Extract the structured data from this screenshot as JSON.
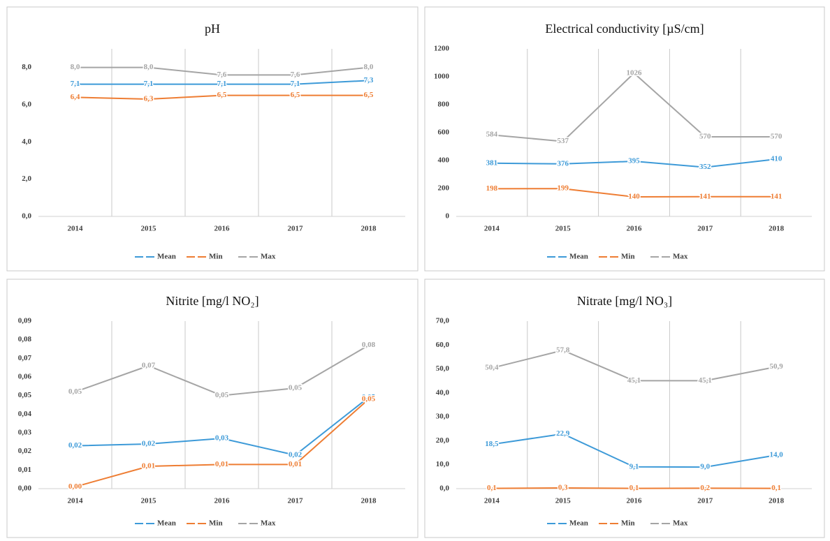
{
  "chart_data": [
    {
      "type": "line",
      "title": "pH",
      "categories": [
        "2014",
        "2015",
        "2016",
        "2017",
        "2018"
      ],
      "series": [
        {
          "name": "Mean",
          "color": "#3d9ad8",
          "values": [
            7.1,
            7.1,
            7.1,
            7.1,
            7.3
          ],
          "value_labels": [
            "7,1",
            "7,1",
            "7,1",
            "7,1",
            "7,3"
          ]
        },
        {
          "name": "Min",
          "color": "#ee7d33",
          "values": [
            6.4,
            6.3,
            6.5,
            6.5,
            6.5
          ],
          "value_labels": [
            "6,4",
            "6,3",
            "6,5",
            "6,5",
            "6,5"
          ]
        },
        {
          "name": "Max",
          "color": "#a5a5a5",
          "values": [
            8.0,
            8.0,
            7.6,
            7.6,
            8.0
          ],
          "value_labels": [
            "8,0",
            "8,0",
            "7,6",
            "7,6",
            "8,0"
          ]
        }
      ],
      "ylim": [
        0,
        9
      ],
      "yticks": [
        {
          "value": 0,
          "label": "0,0"
        },
        {
          "value": 2,
          "label": "2,0"
        },
        {
          "value": 4,
          "label": "4,0"
        },
        {
          "value": 6,
          "label": "6,0"
        },
        {
          "value": 8,
          "label": "8,0"
        }
      ],
      "grid": true,
      "legend": "bottom"
    },
    {
      "type": "line",
      "title": "Electrical conductivity [µS/cm]",
      "categories": [
        "2014",
        "2015",
        "2016",
        "2017",
        "2018"
      ],
      "series": [
        {
          "name": "Mean",
          "color": "#3d9ad8",
          "values": [
            381,
            376,
            395,
            352,
            410
          ]
        },
        {
          "name": "Min",
          "color": "#ee7d33",
          "values": [
            198,
            199,
            140,
            141,
            141
          ]
        },
        {
          "name": "Max",
          "color": "#a5a5a5",
          "values": [
            584,
            537,
            1026,
            570,
            570
          ]
        }
      ],
      "ylim": [
        0,
        1200
      ],
      "yticks": [
        0,
        200,
        400,
        600,
        800,
        1000,
        1200
      ],
      "grid": true,
      "legend": "bottom"
    },
    {
      "type": "line",
      "title": "Nitrite [mg/l NO₂]",
      "categories": [
        "2014",
        "2015",
        "2016",
        "2017",
        "2018"
      ],
      "series": [
        {
          "name": "Mean",
          "color": "#3d9ad8",
          "values": [
            0.023,
            0.024,
            0.027,
            0.018,
            0.049
          ],
          "value_labels": [
            "0,02",
            "0,02",
            "0,03",
            "0,02",
            "0,05"
          ]
        },
        {
          "name": "Min",
          "color": "#ee7d33",
          "values": [
            0.001,
            0.012,
            0.013,
            0.013,
            0.048
          ],
          "value_labels": [
            "0,00",
            "0,01",
            "0,01",
            "0,01",
            "0,05"
          ]
        },
        {
          "name": "Max",
          "color": "#a5a5a5",
          "values": [
            0.052,
            0.066,
            0.05,
            0.054,
            0.077
          ],
          "value_labels": [
            "0,05",
            "0,07",
            "0,05",
            "0,05",
            "0,08"
          ]
        }
      ],
      "ylim": [
        0,
        0.09
      ],
      "yticks": [
        {
          "value": 0,
          "label": "0,00"
        },
        {
          "value": 0.01,
          "label": "0,01"
        },
        {
          "value": 0.02,
          "label": "0,02"
        },
        {
          "value": 0.03,
          "label": "0,03"
        },
        {
          "value": 0.04,
          "label": "0,04"
        },
        {
          "value": 0.05,
          "label": "0,05"
        },
        {
          "value": 0.06,
          "label": "0,06"
        },
        {
          "value": 0.07,
          "label": "0,07"
        },
        {
          "value": 0.08,
          "label": "0,08"
        },
        {
          "value": 0.09,
          "label": "0,09"
        }
      ],
      "grid": true,
      "legend": "bottom"
    },
    {
      "type": "line",
      "title": "Nitrate [mg/l NO₃]",
      "categories": [
        "2014",
        "2015",
        "2016",
        "2017",
        "2018"
      ],
      "series": [
        {
          "name": "Mean",
          "color": "#3d9ad8",
          "values": [
            18.5,
            22.9,
            9.1,
            9.0,
            14.0
          ],
          "value_labels": [
            "18,5",
            "22,9",
            "9,1",
            "9,0",
            "14,0"
          ]
        },
        {
          "name": "Min",
          "color": "#ee7d33",
          "values": [
            0.1,
            0.3,
            0.1,
            0.2,
            0.1
          ],
          "value_labels": [
            "0,1",
            "0,3",
            "0,1",
            "0,2",
            "0,1"
          ]
        },
        {
          "name": "Max",
          "color": "#a5a5a5",
          "values": [
            50.4,
            57.8,
            45.1,
            45.1,
            50.9
          ],
          "value_labels": [
            "50,4",
            "57,8",
            "45,1",
            "45,1",
            "50,9"
          ]
        }
      ],
      "ylim": [
        0,
        70
      ],
      "yticks": [
        {
          "value": 0,
          "label": "0,0"
        },
        {
          "value": 10,
          "label": "10,0"
        },
        {
          "value": 20,
          "label": "20,0"
        },
        {
          "value": 30,
          "label": "30,0"
        },
        {
          "value": 40,
          "label": "40,0"
        },
        {
          "value": 50,
          "label": "50,0"
        },
        {
          "value": 60,
          "label": "60,0"
        },
        {
          "value": 70,
          "label": "70,0"
        }
      ],
      "grid": true,
      "legend": "bottom"
    }
  ]
}
